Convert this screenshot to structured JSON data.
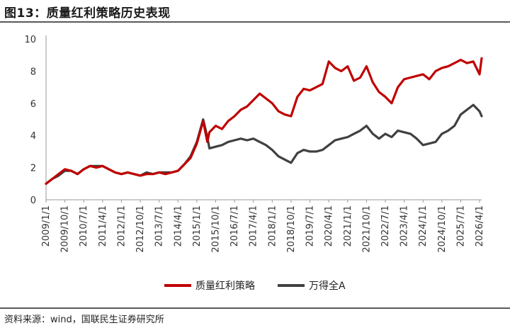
{
  "header": {
    "title": "图13：质量红利策略历史表现"
  },
  "footer": {
    "source": "资料来源：wind，国联民生证券研究所"
  },
  "colors": {
    "series1": "#c00000",
    "series2": "#404040",
    "axis": "#999999",
    "rule": "#5a5a5a"
  },
  "chart_data": {
    "type": "line",
    "title": "",
    "xlabel": "",
    "ylabel": "",
    "ylim": [
      0,
      10
    ],
    "yticks": [
      0,
      2,
      4,
      6,
      8,
      10
    ],
    "grid": false,
    "legend_position": "bottom",
    "xticks": [
      "2009/1/1",
      "2009/10/1",
      "2010/7/1",
      "2011/4/1",
      "2012/1/1",
      "2012/10/1",
      "2013/7/1",
      "2014/4/1",
      "2015/1/1",
      "2015/10/1",
      "2016/7/1",
      "2017/4/1",
      "2018/1/1",
      "2018/10/1",
      "2019/7/1",
      "2020/4/1",
      "2021/1/1",
      "2021/10/1",
      "2022/7/1",
      "2023/4/1",
      "2024/1/1",
      "2024/10/1",
      "2025/7/1",
      "2026/4/1"
    ],
    "x": [
      "2009-01",
      "2009-04",
      "2009-07",
      "2009-10",
      "2010-01",
      "2010-04",
      "2010-07",
      "2010-10",
      "2011-01",
      "2011-04",
      "2011-07",
      "2011-10",
      "2012-01",
      "2012-04",
      "2012-07",
      "2012-10",
      "2013-01",
      "2013-04",
      "2013-07",
      "2013-10",
      "2014-01",
      "2014-04",
      "2014-07",
      "2014-10",
      "2015-01",
      "2015-04",
      "2015-06",
      "2015-07",
      "2015-10",
      "2016-01",
      "2016-04",
      "2016-07",
      "2016-10",
      "2017-01",
      "2017-04",
      "2017-07",
      "2017-10",
      "2018-01",
      "2018-04",
      "2018-07",
      "2018-10",
      "2019-01",
      "2019-04",
      "2019-07",
      "2019-10",
      "2020-01",
      "2020-04",
      "2020-07",
      "2020-10",
      "2021-01",
      "2021-04",
      "2021-07",
      "2021-10",
      "2022-01",
      "2022-04",
      "2022-07",
      "2022-10",
      "2023-01",
      "2023-04",
      "2023-07",
      "2023-10",
      "2024-01",
      "2024-04",
      "2024-07",
      "2024-10",
      "2025-01",
      "2025-04",
      "2025-07",
      "2025-10",
      "2026-01",
      "2026-04",
      "2026-05"
    ],
    "series": [
      {
        "name": "质量红利策略",
        "values": [
          1.0,
          1.3,
          1.6,
          1.9,
          1.8,
          1.6,
          1.9,
          2.1,
          2.0,
          2.1,
          1.9,
          1.7,
          1.6,
          1.7,
          1.6,
          1.5,
          1.6,
          1.6,
          1.7,
          1.6,
          1.7,
          1.8,
          2.2,
          2.6,
          3.5,
          4.9,
          3.6,
          4.2,
          4.6,
          4.4,
          4.9,
          5.2,
          5.6,
          5.8,
          6.2,
          6.6,
          6.3,
          6.0,
          5.5,
          5.3,
          5.2,
          6.4,
          6.9,
          6.8,
          7.0,
          7.2,
          8.6,
          8.2,
          8.0,
          8.3,
          7.4,
          7.6,
          8.3,
          7.3,
          6.7,
          6.4,
          6.0,
          7.0,
          7.5,
          7.6,
          7.7,
          7.8,
          7.5,
          8.0,
          8.2,
          8.3,
          8.5,
          8.7,
          8.5,
          8.6,
          7.8,
          8.8
        ]
      },
      {
        "name": "万得全A",
        "values": [
          1.0,
          1.3,
          1.5,
          1.8,
          1.8,
          1.6,
          1.9,
          2.1,
          2.1,
          2.1,
          1.9,
          1.7,
          1.6,
          1.7,
          1.6,
          1.5,
          1.7,
          1.6,
          1.7,
          1.7,
          1.7,
          1.8,
          2.2,
          2.7,
          3.6,
          5.0,
          3.9,
          3.2,
          3.3,
          3.4,
          3.6,
          3.7,
          3.8,
          3.7,
          3.8,
          3.6,
          3.4,
          3.1,
          2.7,
          2.5,
          2.3,
          2.9,
          3.1,
          3.0,
          3.0,
          3.1,
          3.4,
          3.7,
          3.8,
          3.9,
          4.1,
          4.3,
          4.6,
          4.1,
          3.8,
          4.1,
          3.9,
          4.3,
          4.2,
          4.1,
          3.8,
          3.4,
          3.5,
          3.6,
          4.1,
          4.3,
          4.6,
          5.3,
          5.6,
          5.9,
          5.5,
          5.2
        ]
      }
    ]
  }
}
